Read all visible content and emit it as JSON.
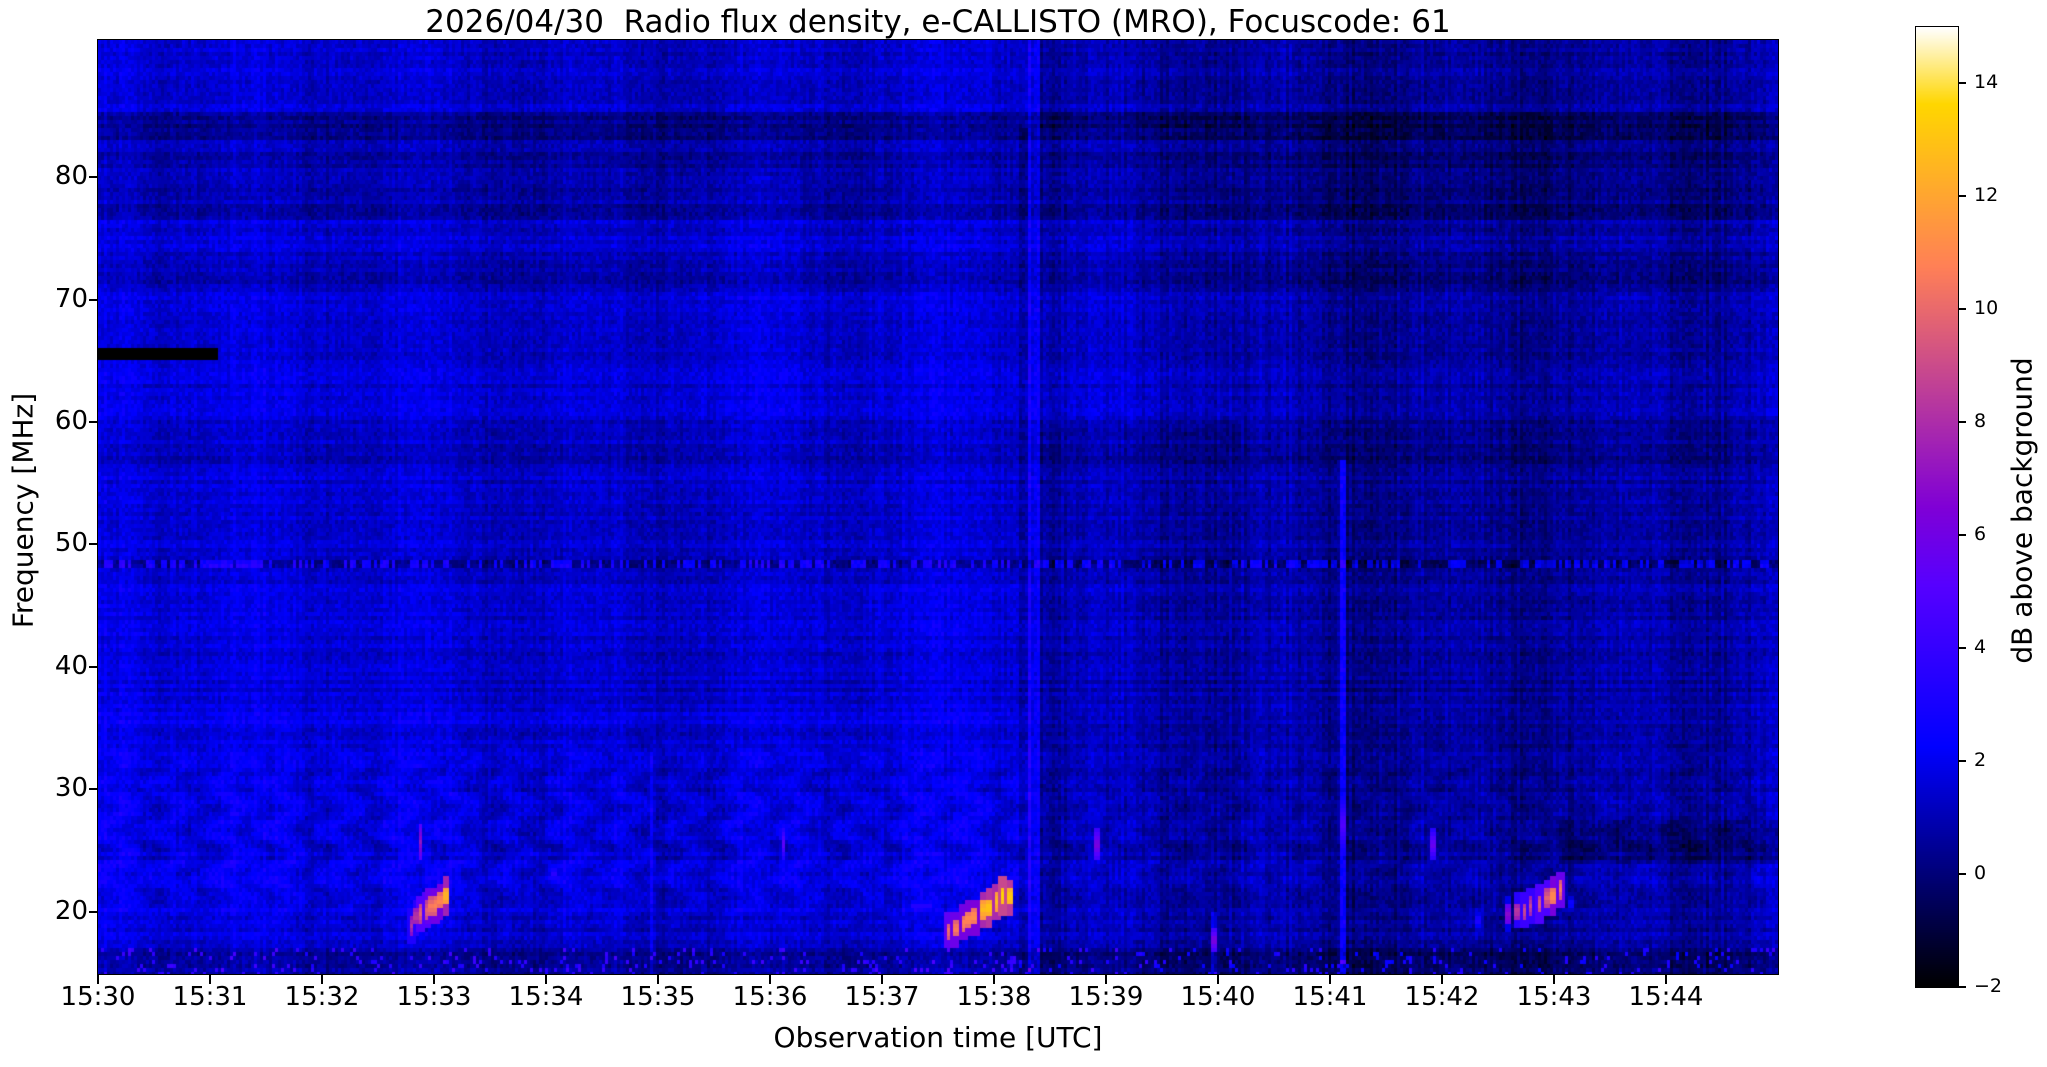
{
  "chart_data": {
    "type": "heatmap",
    "title": "2026/04/30  Radio flux density, e-CALLISTO (MRO), Focuscode: 61",
    "xlabel": "Observation time [UTC]",
    "ylabel": "Frequency [MHz]",
    "x_tick_labels": [
      "15:30",
      "15:31",
      "15:32",
      "15:33",
      "15:34",
      "15:35",
      "15:36",
      "15:37",
      "15:38",
      "15:39",
      "15:40",
      "15:41",
      "15:42",
      "15:43",
      "15:44"
    ],
    "x_range": {
      "start": "15:30",
      "end": "15:45",
      "minutes": 15
    },
    "y_ticks_mhz": [
      20,
      30,
      40,
      50,
      60,
      70,
      80
    ],
    "y_range_mhz": [
      14.9,
      91.2
    ],
    "grid": false,
    "colorbar": {
      "label": "dB above background",
      "tick_values": [
        14,
        12,
        10,
        8,
        6,
        4,
        2,
        0,
        -2
      ],
      "vmin": -2,
      "vmax": 15,
      "colormap": "gnuplot2"
    },
    "background": {
      "left_region_db": 1.5,
      "right_region_db": 0.75,
      "boundary_minute": 8.33,
      "row_noise_db": 0.38,
      "col_noise_db": 0.3,
      "cell_noise_db": 0.5
    },
    "rfi_bands": [
      {
        "f_lo": 83.0,
        "f_hi": 85.2,
        "delta_db": -1.1,
        "side": "both"
      },
      {
        "f_lo": 76.5,
        "f_hi": 82.6,
        "delta_db": -0.65,
        "side": "both"
      },
      {
        "f_lo": 71.3,
        "f_hi": 73.9,
        "delta_db": -0.5,
        "side": "both"
      },
      {
        "f_lo": 66.6,
        "f_hi": 67.8,
        "delta_db": -0.3,
        "side": "both"
      },
      {
        "f_lo": 56.3,
        "f_hi": 60.6,
        "delta_db": -0.35,
        "side": "both"
      },
      {
        "f_lo": 44.0,
        "f_hi": 46.0,
        "delta_db": -0.2,
        "side": "right"
      },
      {
        "f_lo": 14.9,
        "f_hi": 17.3,
        "delta_db": -1.0,
        "side": "both",
        "speckle_db": 3.2
      },
      {
        "f_lo": 35.1,
        "f_hi": 36.4,
        "delta_db": 0.45,
        "side": "left"
      },
      {
        "f_lo": 20.0,
        "f_hi": 34.0,
        "delta_db": 0.25,
        "side": "left"
      }
    ],
    "patches": [
      {
        "t0": 13.05,
        "t1": 15.0,
        "f_lo": 24.0,
        "f_hi": 27.5,
        "delta_db": -0.75
      },
      {
        "t0": 8.4,
        "t1": 10.2,
        "f_lo": 60.0,
        "f_hi": 84.0,
        "delta_db": 0.3
      },
      {
        "t0": 5.0,
        "t1": 6.3,
        "f_lo": 55.0,
        "f_hi": 80.0,
        "delta_db": 0.25
      },
      {
        "t0": 0.0,
        "t1": 0.35,
        "f_lo": 14.9,
        "f_hi": 91.2,
        "delta_db": 0.2
      }
    ],
    "rfi_lines": [
      {
        "type": "dash",
        "t0": 0.0,
        "t1": 1.07,
        "f_lo": 65.0,
        "f_hi": 66.0,
        "value_db": -2
      },
      {
        "type": "dotted",
        "f_lo": 48.2,
        "f_hi": 48.9,
        "dark_db": -1.5,
        "bright_db": 1.2
      }
    ],
    "vertical_events": [
      {
        "t0": 8.31,
        "t1": 8.4,
        "f_lo": 14.9,
        "f_hi": 91.2,
        "delta_db": 1.5
      },
      {
        "t0": 8.22,
        "t1": 8.31,
        "f_lo": 14.9,
        "f_hi": 84.0,
        "delta_db": -0.7
      },
      {
        "t0": 11.095,
        "t1": 11.135,
        "f_lo": 14.9,
        "f_hi": 57.0,
        "delta_db": 2.1
      },
      {
        "t0": 4.92,
        "t1": 4.95,
        "f_lo": 14.9,
        "f_hi": 33.0,
        "delta_db": 1.1
      },
      {
        "t0": 9.93,
        "t1": 9.99,
        "f_lo": 14.9,
        "f_hi": 20.0,
        "delta_db": 1.5
      }
    ],
    "bursts": [
      {
        "t0": 2.8,
        "t1": 3.1,
        "f0": 19.2,
        "f1": 21.4,
        "peak_db": 11.5,
        "n": 8
      },
      {
        "t0": 7.6,
        "t1": 8.13,
        "f0": 18.7,
        "f1": 21.6,
        "peak_db": 13.2,
        "n": 10
      },
      {
        "t0": 12.6,
        "t1": 13.06,
        "f0": 19.7,
        "f1": 21.8,
        "peak_db": 10.5,
        "n": 8
      }
    ],
    "point_events": [
      {
        "t": 2.88,
        "f": 25.8,
        "df": 1.6,
        "db": 7.2
      },
      {
        "t": 4.06,
        "f": 23.2,
        "df": 1.2,
        "db": 3.6
      },
      {
        "t": 6.12,
        "f": 25.7,
        "df": 1.3,
        "db": 5.6
      },
      {
        "t": 8.92,
        "f": 25.6,
        "df": 1.4,
        "db": 6.4
      },
      {
        "t": 11.11,
        "f": 27.2,
        "df": 2.4,
        "db": 5.0
      },
      {
        "t": 11.92,
        "f": 25.6,
        "df": 1.3,
        "db": 5.8
      },
      {
        "t": 9.96,
        "f": 17.8,
        "df": 1.0,
        "db": 6.5
      },
      {
        "t": 7.35,
        "f": 20.6,
        "df": 0.8,
        "db": 3.4,
        "dt": 0.18
      },
      {
        "t": 12.33,
        "f": 19.4,
        "df": 0.9,
        "db": 3.4
      },
      {
        "t": 13.15,
        "f": 20.8,
        "df": 0.8,
        "db": 3.0
      }
    ]
  }
}
